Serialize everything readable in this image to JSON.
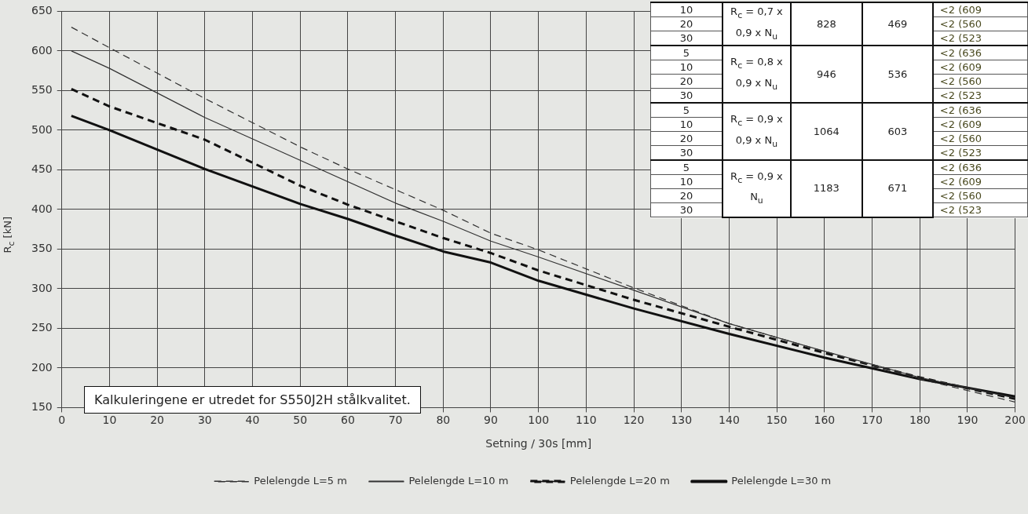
{
  "chart_data": {
    "type": "line",
    "xlabel": "Setning / 30s [mm]",
    "ylabel": "R$_{c}$ [kN]",
    "xlim": [
      0,
      200
    ],
    "xticks": [
      0,
      10,
      20,
      30,
      40,
      50,
      60,
      70,
      80,
      90,
      100,
      110,
      120,
      130,
      140,
      150,
      160,
      170,
      180,
      190,
      200
    ],
    "ylim": [
      150,
      650
    ],
    "yticks": [
      150,
      200,
      250,
      300,
      350,
      400,
      450,
      500,
      550,
      600,
      650
    ],
    "grid": true,
    "legend": "bottom",
    "marker": "none",
    "series": [
      {
        "name": "Pelelengde L=5 m",
        "color": "#333333",
        "line_style": "dashed",
        "x": [
          2,
          10,
          30,
          50,
          60,
          80,
          90,
          100,
          120,
          140,
          160,
          180,
          200
        ],
        "values": [
          630,
          604,
          540,
          479,
          451,
          399,
          370,
          349,
          301,
          256,
          221,
          186,
          157
        ]
      },
      {
        "name": "Pelelengde L=10 m",
        "color": "#333333",
        "line_style": "solid",
        "x": [
          2,
          10,
          30,
          50,
          70,
          80,
          90,
          100,
          120,
          140,
          160,
          180,
          200
        ],
        "values": [
          600,
          578,
          516,
          462,
          408,
          385,
          360,
          340,
          298,
          256,
          221,
          188,
          162
        ]
      },
      {
        "name": "Pelelengde L=20 m",
        "color": "#111111",
        "line_style": "dashed",
        "x": [
          2,
          10,
          30,
          50,
          60,
          70,
          80,
          90,
          100,
          120,
          140,
          160,
          180,
          200
        ],
        "values": [
          552,
          530,
          488,
          430,
          406,
          385,
          364,
          345,
          323,
          286,
          252,
          219,
          188,
          161
        ]
      },
      {
        "name": "Pelelengde L=30 m",
        "color": "#111111",
        "line_style": "solid",
        "x": [
          2,
          10,
          30,
          50,
          60,
          70,
          80,
          90,
          100,
          120,
          140,
          160,
          180,
          200
        ],
        "values": [
          518,
          500,
          451,
          407,
          388,
          367,
          347,
          333,
          310,
          275,
          243,
          213,
          186,
          164
        ]
      }
    ],
    "annotations": [
      "Kalkuleringene er utredet for S550J2H stålkvalitet.",
      "R$_{c}$ = 0,7 x 0,9 x N$_{u}$",
      "828",
      "469",
      "10",
      "<2 (609",
      "20",
      "<2 (560",
      "30",
      "<2 (523",
      "R$_{c}$ = 0,8 x 0,9 x N$_{u}$",
      "946",
      "536",
      "5",
      "<2 (636",
      "10",
      "<2 (609",
      "20",
      "<2 (560",
      "30",
      "<2 (523",
      "R$_{c}$ = 0,9 x 0,9 x N$_{u}$",
      "1064",
      "603",
      "5",
      "<2 (636",
      "10",
      "<2 (609",
      "20",
      "<2 (560",
      "30",
      "<2 (523",
      "R$_{c}$ = 0,9 x N$_{u}$",
      "1183",
      "671",
      "5",
      "<2 (636",
      "10",
      "<2 (609",
      "20",
      "<2 (560",
      "30",
      "<2 (523"
    ]
  }
}
